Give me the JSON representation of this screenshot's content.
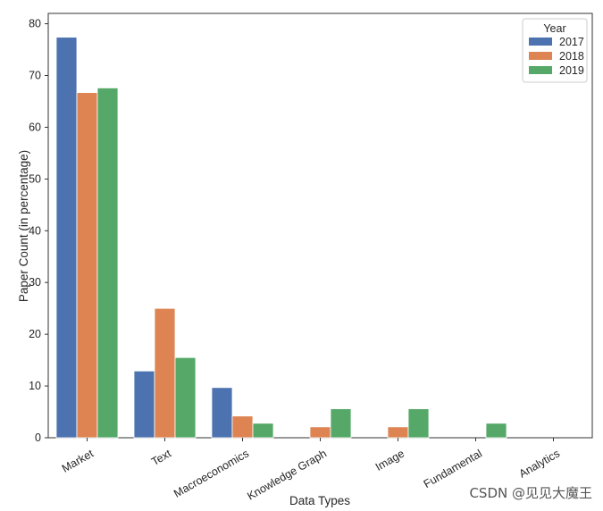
{
  "chart_data": {
    "type": "bar",
    "categories": [
      "Market",
      "Text",
      "Macroeconomics",
      "Knowledge Graph",
      "Image",
      "Fundamental",
      "Analytics"
    ],
    "series": [
      {
        "name": "2017",
        "color": "#4c72b0",
        "values": [
          77.4,
          12.9,
          9.7,
          0,
          0,
          0,
          0
        ]
      },
      {
        "name": "2018",
        "color": "#dd8452",
        "values": [
          66.7,
          25.0,
          4.2,
          2.1,
          2.1,
          0,
          0
        ]
      },
      {
        "name": "2019",
        "color": "#55a868",
        "values": [
          67.6,
          15.5,
          2.8,
          5.6,
          5.6,
          2.8,
          0
        ]
      }
    ],
    "xlabel": "Data Types",
    "ylabel": "Paper Count (in percentage)",
    "ylim": [
      0,
      82
    ],
    "yticks": [
      "0",
      "10",
      "20",
      "30",
      "40",
      "50",
      "60",
      "70",
      "80"
    ],
    "legend_title": "Year",
    "legend_position": "top-right",
    "grid": false
  },
  "watermark": "CSDN @见见大魔王"
}
